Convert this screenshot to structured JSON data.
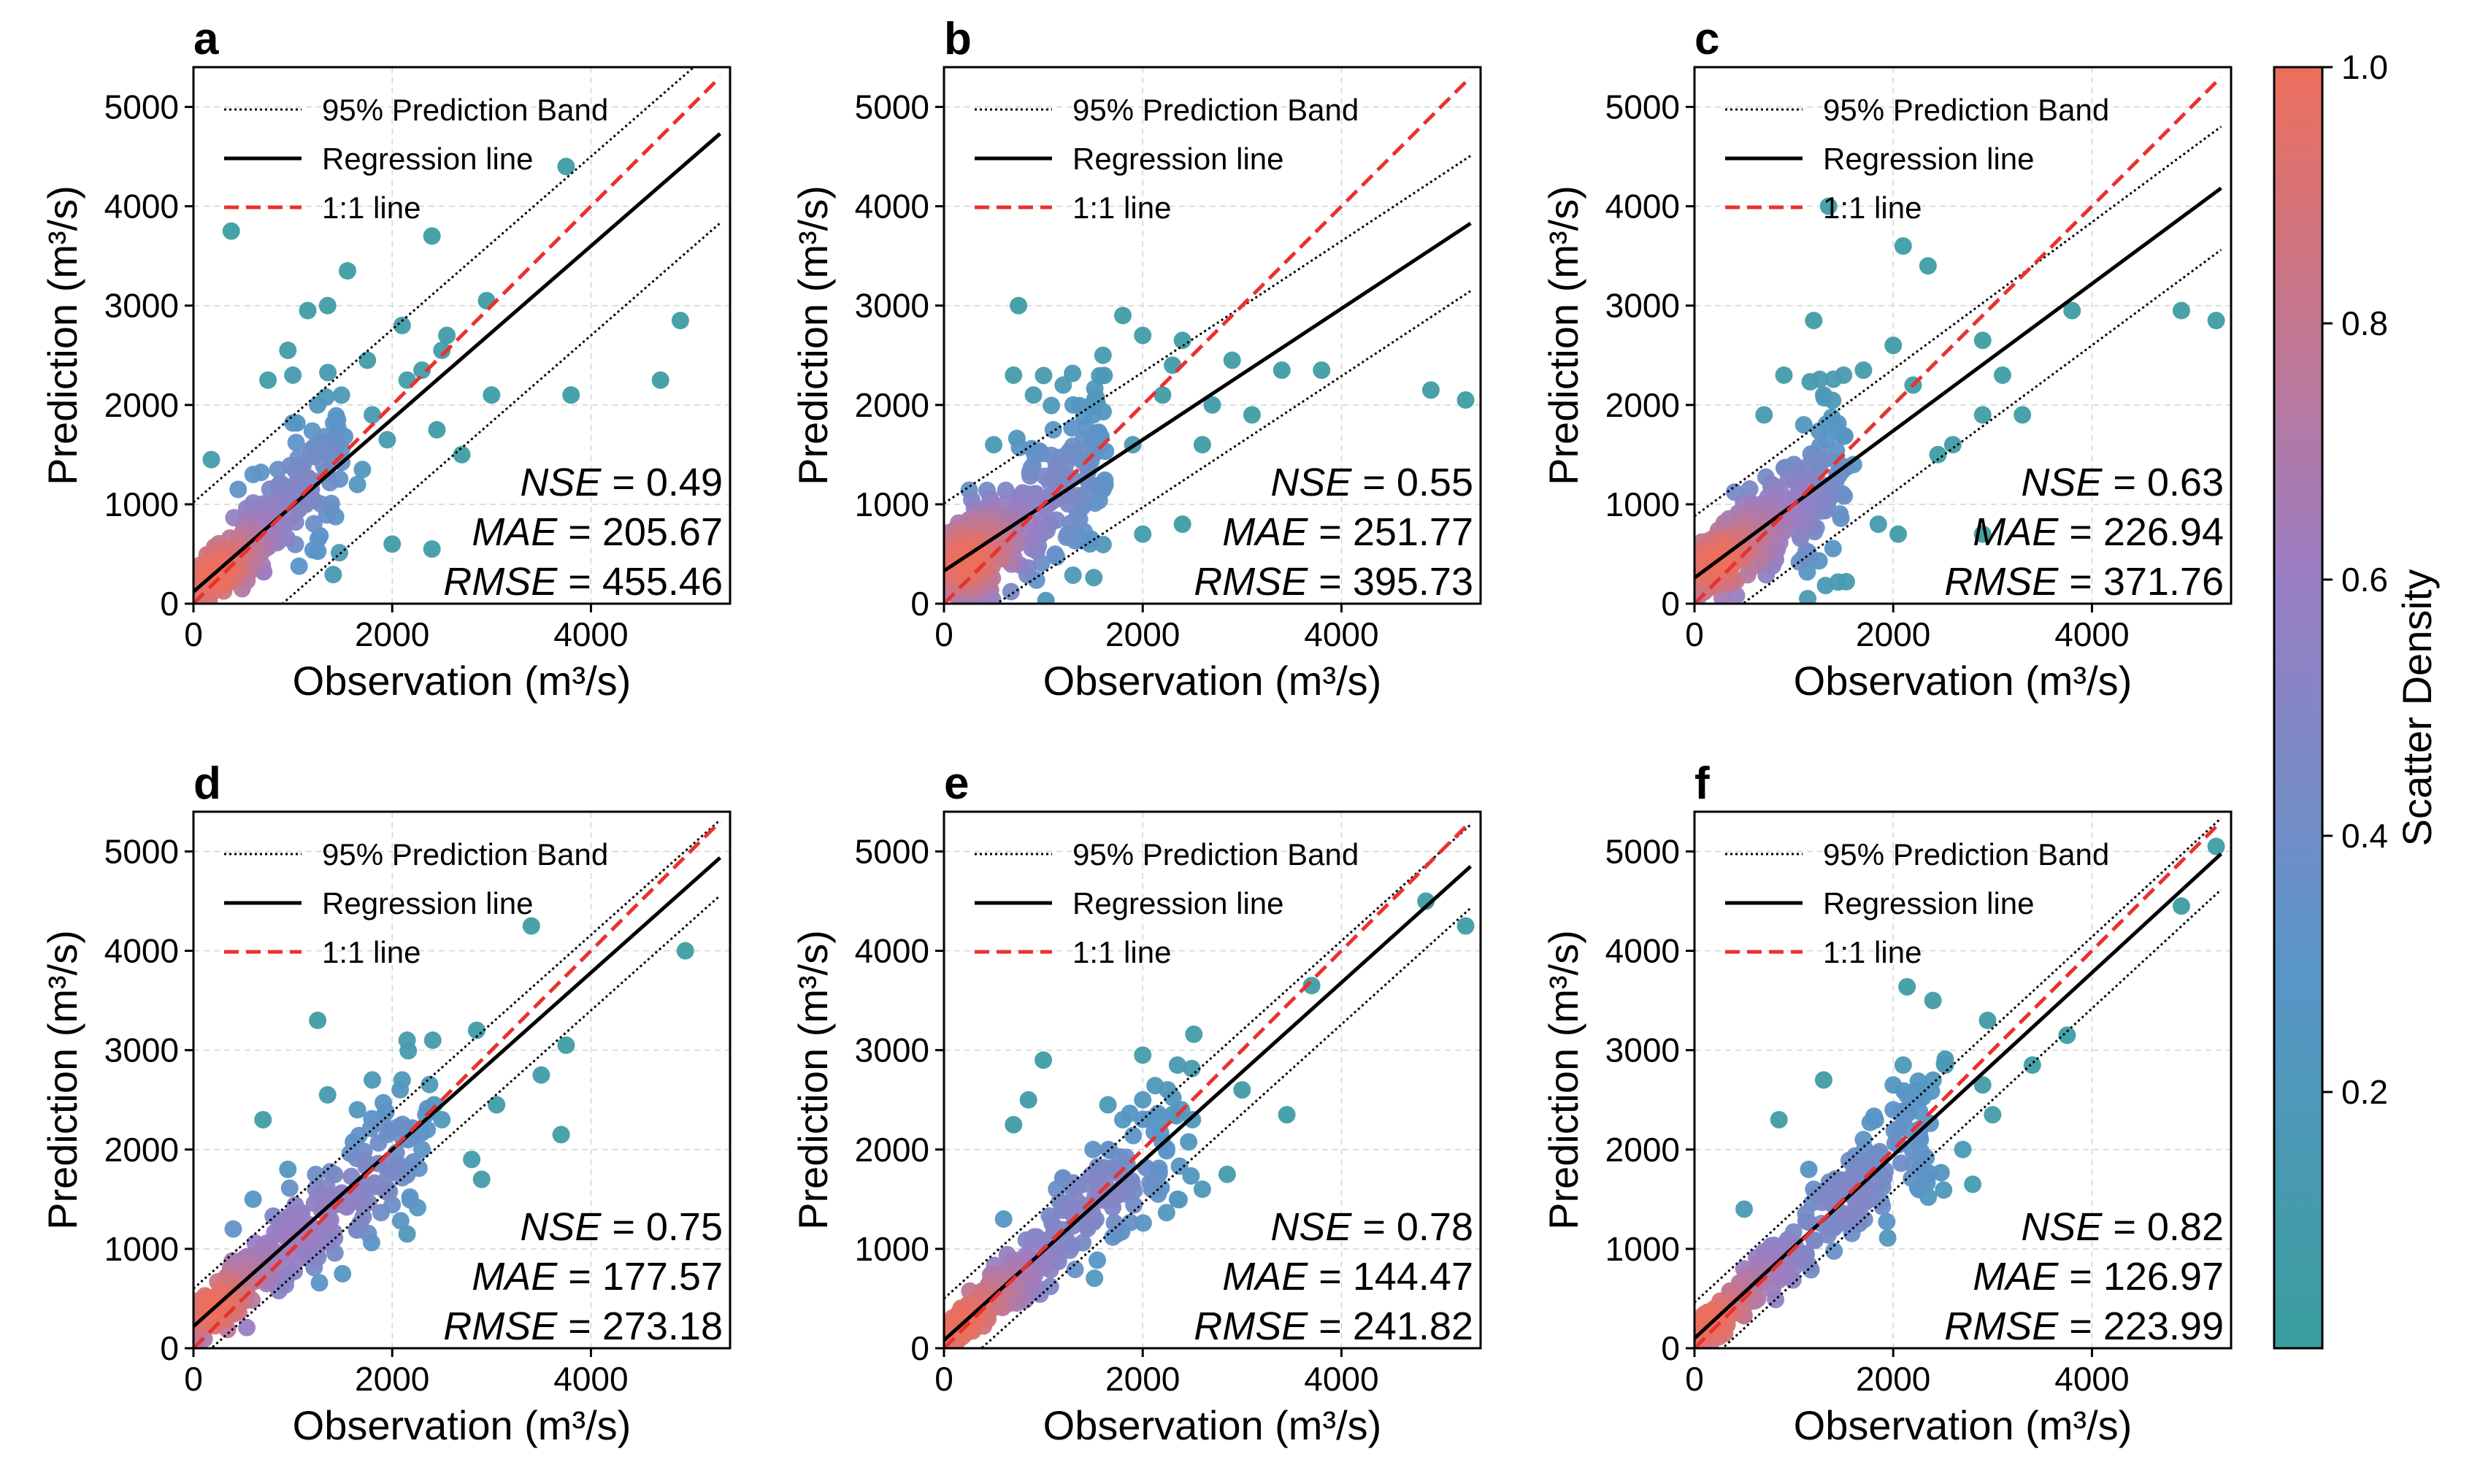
{
  "colors": {
    "scatter_low": "#3a9e9e",
    "scatter_mid_low": "#5a95c8",
    "scatter_mid": "#9a7ec4",
    "scatter_high": "#ec6f5c",
    "regression": "#000000",
    "one_to_one": "#e8322f",
    "band": "#000000",
    "grid": "#d6d6d6"
  },
  "axes": {
    "xlabel": "Observation (m³/s)",
    "ylabel": "Prediction (m³/s)",
    "xlim": [
      0,
      5400
    ],
    "ylim": [
      0,
      5400
    ],
    "xticks": [
      "0",
      "2000",
      "4000"
    ],
    "xtick_values": [
      0,
      2000,
      4000
    ],
    "yticks": [
      "0",
      "1000",
      "2000",
      "3000",
      "4000",
      "5000"
    ],
    "ytick_values": [
      0,
      1000,
      2000,
      3000,
      4000,
      5000
    ]
  },
  "legend": {
    "position": "top-left",
    "band_label": "95% Prediction Band",
    "regression_label": "Regression line",
    "one_to_one_label": "1:1 line"
  },
  "colorbar": {
    "label": "Scatter Density",
    "ticks": [
      "0.2",
      "0.4",
      "0.6",
      "0.8",
      "1.0"
    ],
    "tick_values": [
      0.2,
      0.4,
      0.6,
      0.8,
      1.0
    ],
    "range": [
      0,
      1
    ]
  },
  "chart_data": [
    {
      "type": "scatter",
      "panel": "a",
      "metrics": {
        "nse_label": "NSE",
        "nse": "0.49",
        "mae_label": "MAE",
        "mae": "205.67",
        "rmse_label": "RMSE",
        "rmse": "455.46"
      },
      "regression": {
        "intercept": 120,
        "slope": 0.87
      },
      "band_halfwidth": 900,
      "outliers": [
        [
          380,
          3750
        ],
        [
          3750,
          4400
        ],
        [
          1350,
          3000
        ],
        [
          1550,
          3350
        ],
        [
          2400,
          3700
        ],
        [
          1150,
          2950
        ],
        [
          950,
          2550
        ],
        [
          1750,
          2450
        ],
        [
          2150,
          2250
        ],
        [
          2300,
          2350
        ],
        [
          2500,
          2550
        ],
        [
          2950,
          3050
        ],
        [
          2100,
          2800
        ],
        [
          1000,
          2300
        ],
        [
          750,
          2250
        ],
        [
          1250,
          2000
        ],
        [
          2450,
          1750
        ],
        [
          2700,
          1500
        ],
        [
          3000,
          2100
        ],
        [
          3800,
          2100
        ],
        [
          4700,
          2250
        ],
        [
          4900,
          2850
        ],
        [
          2000,
          600
        ],
        [
          2400,
          550
        ],
        [
          1700,
          1350
        ],
        [
          1800,
          1900
        ],
        [
          600,
          1300
        ],
        [
          180,
          1450
        ],
        [
          450,
          1150
        ],
        [
          850,
          1350
        ],
        [
          1450,
          1850
        ],
        [
          2550,
          2700
        ],
        [
          1950,
          1650
        ],
        [
          1650,
          1200
        ]
      ],
      "cluster": {
        "n": 300,
        "xmax": 1500,
        "noise": 0.32
      }
    },
    {
      "type": "scatter",
      "panel": "b",
      "metrics": {
        "nse_label": "NSE",
        "nse": "0.55",
        "mae_label": "MAE",
        "mae": "251.77",
        "rmse_label": "RMSE",
        "rmse": "395.73"
      },
      "regression": {
        "intercept": 330,
        "slope": 0.66
      },
      "band_halfwidth": 680,
      "outliers": [
        [
          750,
          3000
        ],
        [
          1200,
          2200
        ],
        [
          1800,
          2900
        ],
        [
          2000,
          2700
        ],
        [
          2400,
          2650
        ],
        [
          2300,
          2400
        ],
        [
          2900,
          2450
        ],
        [
          3400,
          2350
        ],
        [
          3800,
          2350
        ],
        [
          4900,
          2150
        ],
        [
          5250,
          2050
        ],
        [
          2000,
          700
        ],
        [
          2400,
          800
        ],
        [
          1600,
          1150
        ],
        [
          2600,
          1600
        ],
        [
          3100,
          1900
        ],
        [
          1300,
          2000
        ],
        [
          1600,
          2500
        ],
        [
          700,
          2300
        ],
        [
          900,
          2100
        ],
        [
          1100,
          1750
        ],
        [
          2200,
          2100
        ],
        [
          1900,
          1600
        ],
        [
          2700,
          2000
        ],
        [
          500,
          1600
        ],
        [
          1500,
          1900
        ]
      ],
      "cluster": {
        "n": 380,
        "xmax": 1600,
        "noise": 0.38
      }
    },
    {
      "type": "scatter",
      "panel": "c",
      "metrics": {
        "nse_label": "NSE",
        "nse": "0.63",
        "mae_label": "MAE",
        "mae": "226.94",
        "rmse_label": "RMSE",
        "rmse": "371.76"
      },
      "regression": {
        "intercept": 260,
        "slope": 0.74
      },
      "band_halfwidth": 620,
      "outliers": [
        [
          1350,
          4000
        ],
        [
          2100,
          3600
        ],
        [
          2350,
          3400
        ],
        [
          2000,
          2600
        ],
        [
          1700,
          2350
        ],
        [
          1500,
          2300
        ],
        [
          1300,
          2100
        ],
        [
          2900,
          2650
        ],
        [
          3100,
          2300
        ],
        [
          3800,
          2950
        ],
        [
          4900,
          2950
        ],
        [
          5250,
          2850
        ],
        [
          2900,
          1900
        ],
        [
          3300,
          1900
        ],
        [
          1850,
          800
        ],
        [
          2050,
          700
        ],
        [
          2900,
          700
        ],
        [
          2600,
          1600
        ],
        [
          1200,
          2850
        ],
        [
          900,
          2300
        ],
        [
          1100,
          1800
        ],
        [
          2200,
          2200
        ],
        [
          2450,
          1500
        ],
        [
          700,
          1900
        ],
        [
          1600,
          1400
        ]
      ],
      "cluster": {
        "n": 360,
        "xmax": 1500,
        "noise": 0.34
      }
    },
    {
      "type": "scatter",
      "panel": "d",
      "metrics": {
        "nse_label": "NSE",
        "nse": "0.75",
        "mae_label": "MAE",
        "mae": "177.57",
        "rmse_label": "RMSE",
        "rmse": "273.18"
      },
      "regression": {
        "intercept": 220,
        "slope": 0.89
      },
      "band_halfwidth": 380,
      "outliers": [
        [
          1250,
          3300
        ],
        [
          3400,
          4250
        ],
        [
          4950,
          4000
        ],
        [
          3750,
          3050
        ],
        [
          3700,
          2150
        ],
        [
          3500,
          2750
        ],
        [
          2850,
          3200
        ],
        [
          2150,
          3100
        ],
        [
          2100,
          2700
        ],
        [
          1650,
          2400
        ],
        [
          1350,
          2550
        ],
        [
          700,
          2300
        ],
        [
          1500,
          750
        ],
        [
          2150,
          1150
        ],
        [
          2900,
          1700
        ],
        [
          2800,
          1900
        ],
        [
          3050,
          2450
        ],
        [
          2300,
          2000
        ],
        [
          600,
          1500
        ],
        [
          950,
          1800
        ],
        [
          400,
          1200
        ],
        [
          1800,
          2700
        ],
        [
          2500,
          2300
        ]
      ],
      "cluster": {
        "n": 320,
        "xmax": 2400,
        "noise": 0.22
      }
    },
    {
      "type": "scatter",
      "panel": "e",
      "metrics": {
        "nse_label": "NSE",
        "nse": "0.78",
        "mae_label": "MAE",
        "mae": "144.47",
        "rmse_label": "RMSE",
        "rmse": "241.82"
      },
      "regression": {
        "intercept": 80,
        "slope": 0.9
      },
      "band_halfwidth": 420,
      "outliers": [
        [
          1000,
          2900
        ],
        [
          2000,
          2950
        ],
        [
          1650,
          2450
        ],
        [
          2350,
          2850
        ],
        [
          2000,
          2500
        ],
        [
          850,
          2500
        ],
        [
          700,
          2250
        ],
        [
          2500,
          2300
        ],
        [
          3000,
          2600
        ],
        [
          3450,
          2350
        ],
        [
          3700,
          3650
        ],
        [
          4850,
          4500
        ],
        [
          5250,
          4250
        ],
        [
          2850,
          1750
        ],
        [
          2600,
          1600
        ],
        [
          2350,
          1500
        ],
        [
          1500,
          2000
        ],
        [
          1200,
          1700
        ],
        [
          1800,
          2300
        ],
        [
          600,
          1300
        ]
      ],
      "cluster": {
        "n": 320,
        "xmax": 2500,
        "noise": 0.2
      }
    },
    {
      "type": "scatter",
      "panel": "f",
      "metrics": {
        "nse_label": "NSE",
        "nse": "0.82",
        "mae_label": "MAE",
        "mae": "126.97",
        "rmse_label": "RMSE",
        "rmse": "223.99"
      },
      "regression": {
        "intercept": 100,
        "slope": 0.92
      },
      "band_halfwidth": 360,
      "outliers": [
        [
          2400,
          3500
        ],
        [
          2950,
          3300
        ],
        [
          2900,
          2650
        ],
        [
          3000,
          2350
        ],
        [
          2800,
          1650
        ],
        [
          2100,
          2850
        ],
        [
          2000,
          2650
        ],
        [
          2000,
          2400
        ],
        [
          1300,
          2700
        ],
        [
          1150,
          1800
        ],
        [
          1200,
          1600
        ],
        [
          850,
          2300
        ],
        [
          3400,
          2850
        ],
        [
          3750,
          3150
        ],
        [
          4900,
          4450
        ],
        [
          5250,
          5050
        ],
        [
          2700,
          2000
        ],
        [
          2200,
          1850
        ],
        [
          500,
          1400
        ],
        [
          1700,
          2100
        ]
      ],
      "cluster": {
        "n": 330,
        "xmax": 2500,
        "noise": 0.18
      }
    }
  ]
}
